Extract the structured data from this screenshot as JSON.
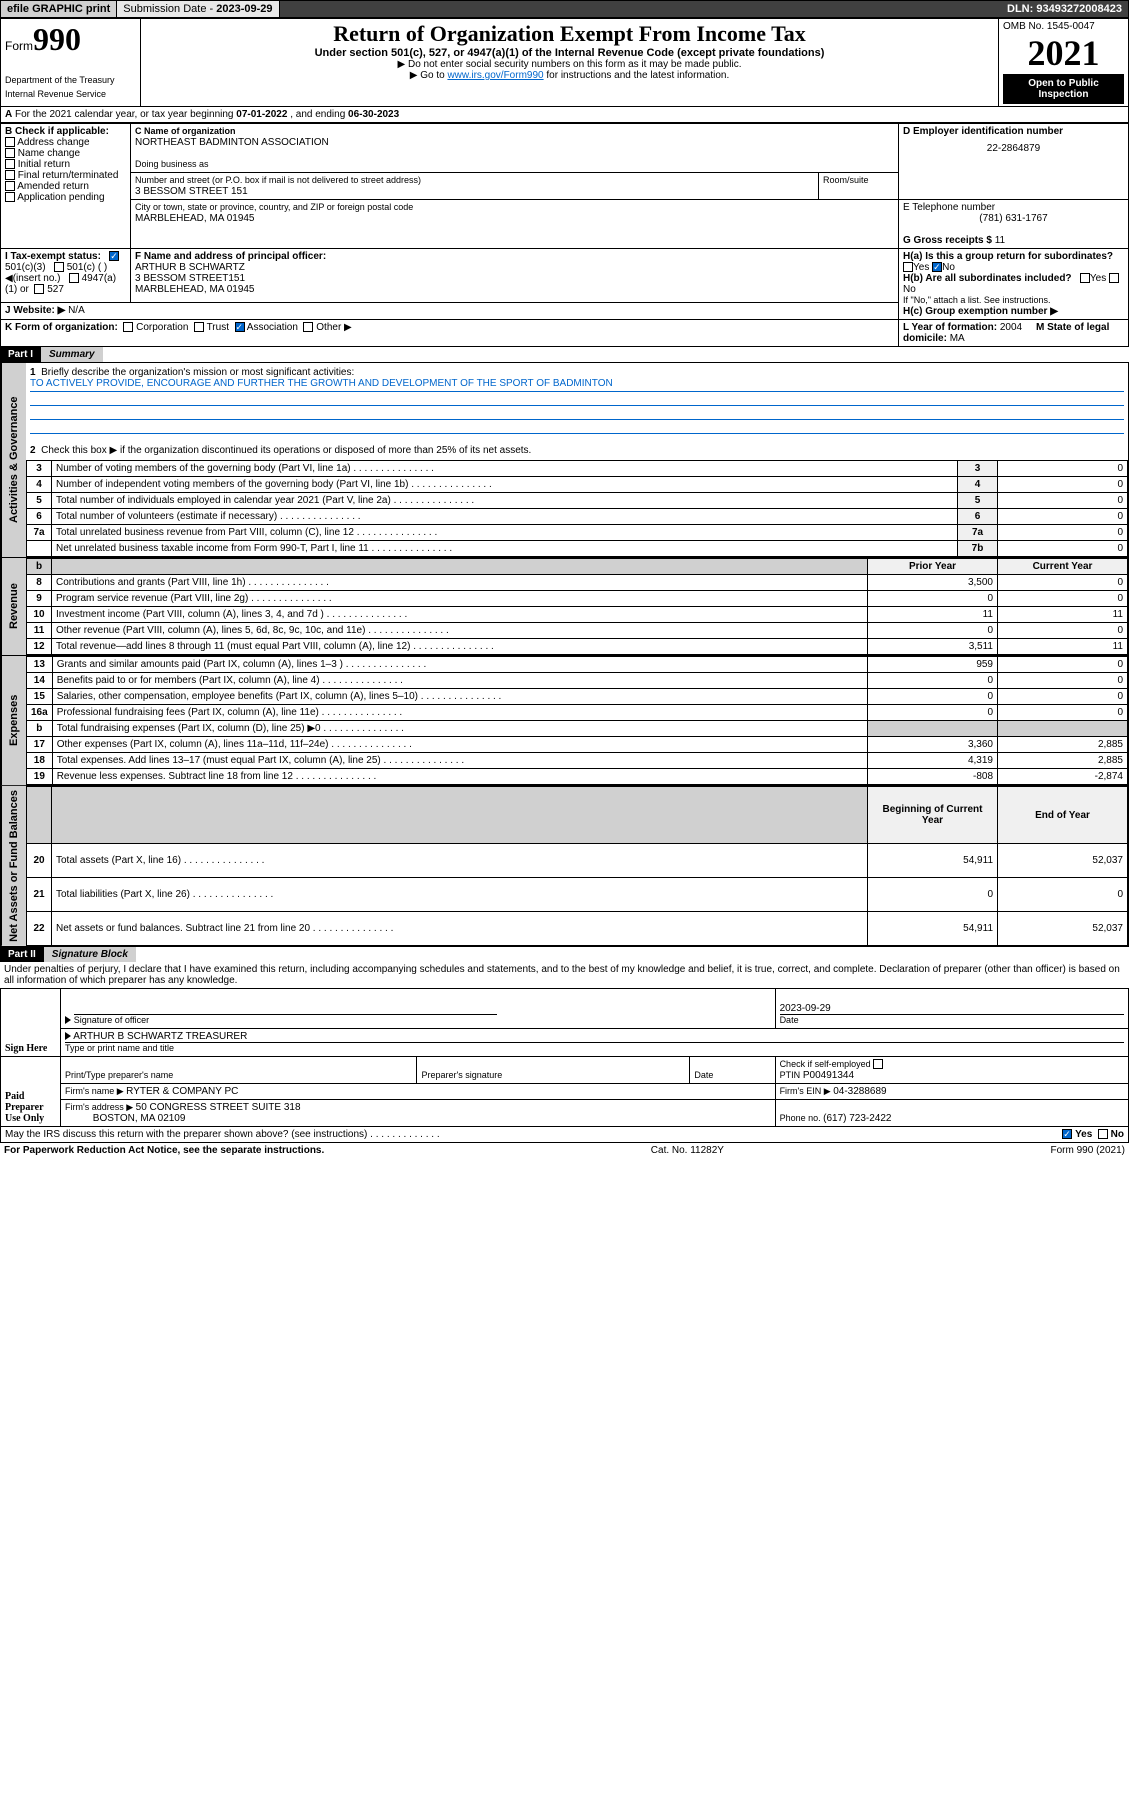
{
  "topbar": {
    "efile": "efile GRAPHIC print",
    "sub_label": "Submission Date - ",
    "sub_date": "2023-09-29",
    "dln_label": "DLN: ",
    "dln": "93493272008423"
  },
  "header": {
    "form_label": "Form",
    "form_no": "990",
    "dept": "Department of the Treasury\nInternal Revenue Service",
    "title": "Return of Organization Exempt From Income Tax",
    "subtitle": "Under section 501(c), 527, or 4947(a)(1) of the Internal Revenue Code (except private foundations)",
    "instr1": "▶ Do not enter social security numbers on this form as it may be made public.",
    "instr2": "▶ Go to ",
    "instr2_link": "www.irs.gov/Form990",
    "instr2_rest": " for instructions and the latest information.",
    "omb": "OMB No. 1545-0047",
    "year": "2021",
    "open": "Open to Public Inspection"
  },
  "line_a": {
    "text": "For the 2021 calendar year, or tax year beginning ",
    "begin": "07-01-2022",
    "mid": " , and ending ",
    "end": "06-30-2023"
  },
  "box_b": {
    "label": "B Check if applicable:",
    "opts": [
      "Address change",
      "Name change",
      "Initial return",
      "Final return/terminated",
      "Amended return",
      "Application pending"
    ]
  },
  "box_c": {
    "name_label": "C Name of organization",
    "name": "NORTHEAST BADMINTON ASSOCIATION",
    "dba_label": "Doing business as",
    "dba": "",
    "street_label": "Number and street (or P.O. box if mail is not delivered to street address)",
    "room_label": "Room/suite",
    "street": "3 BESSOM STREET 151",
    "city_label": "City or town, state or province, country, and ZIP or foreign postal code",
    "city": "MARBLEHEAD, MA  01945"
  },
  "box_d": {
    "label": "D Employer identification number",
    "val": "22-2864879"
  },
  "box_e": {
    "label": "E Telephone number",
    "val": "(781) 631-1767"
  },
  "box_g": {
    "label": "G Gross receipts $ ",
    "val": "11"
  },
  "box_f": {
    "label": "F  Name and address of principal officer:",
    "name": "ARTHUR B SCHWARTZ",
    "addr1": "3 BESSOM STREET151",
    "addr2": "MARBLEHEAD, MA  01945"
  },
  "box_h": {
    "a_label": "H(a)  Is this a group return for subordinates?",
    "b_label": "H(b)  Are all subordinates included?",
    "b_note": "If \"No,\" attach a list. See instructions.",
    "c_label": "H(c)  Group exemption number ▶"
  },
  "box_i": {
    "label": "I  Tax-exempt status:",
    "opt1": "501(c)(3)",
    "opt2": "501(c) (   ) ◀(insert no.)",
    "opt3": "4947(a)(1) or",
    "opt4": "527"
  },
  "box_j": {
    "label": "J  Website: ▶ ",
    "val": "N/A"
  },
  "box_k": {
    "label": "K Form of organization:",
    "opts": [
      "Corporation",
      "Trust",
      "Association",
      "Other ▶"
    ]
  },
  "box_l": {
    "label": "L Year of formation: ",
    "val": "2004"
  },
  "box_m": {
    "label": "M State of legal domicile: ",
    "val": "MA"
  },
  "parts": {
    "p1": {
      "hdr": "Part I",
      "title": "Summary"
    },
    "p2": {
      "hdr": "Part II",
      "title": "Signature Block"
    }
  },
  "summary": {
    "side1": "Activities & Governance",
    "side2": "Revenue",
    "side3": "Expenses",
    "side4": "Net Assets or Fund Balances",
    "line1_label": "Briefly describe the organization's mission or most significant activities:",
    "line1_text": "TO ACTIVELY PROVIDE, ENCOURAGE AND FURTHER THE GROWTH AND DEVELOPMENT OF THE SPORT OF BADMINTON",
    "line2": "Check this box ▶       if the organization discontinued its operations or disposed of more than 25% of its net assets.",
    "rows_gov": [
      {
        "n": "3",
        "d": "Number of voting members of the governing body (Part VI, line 1a)",
        "ln": "3",
        "v": "0"
      },
      {
        "n": "4",
        "d": "Number of independent voting members of the governing body (Part VI, line 1b)",
        "ln": "4",
        "v": "0"
      },
      {
        "n": "5",
        "d": "Total number of individuals employed in calendar year 2021 (Part V, line 2a)",
        "ln": "5",
        "v": "0"
      },
      {
        "n": "6",
        "d": "Total number of volunteers (estimate if necessary)",
        "ln": "6",
        "v": "0"
      },
      {
        "n": "7a",
        "d": "Total unrelated business revenue from Part VIII, column (C), line 12",
        "ln": "7a",
        "v": "0"
      },
      {
        "n": "",
        "d": "Net unrelated business taxable income from Form 990-T, Part I, line 11",
        "ln": "7b",
        "v": "0"
      }
    ],
    "col_prior": "Prior Year",
    "col_curr": "Current Year",
    "rows_rev": [
      {
        "n": "8",
        "d": "Contributions and grants (Part VIII, line 1h)",
        "p": "3,500",
        "c": "0"
      },
      {
        "n": "9",
        "d": "Program service revenue (Part VIII, line 2g)",
        "p": "0",
        "c": "0"
      },
      {
        "n": "10",
        "d": "Investment income (Part VIII, column (A), lines 3, 4, and 7d )",
        "p": "11",
        "c": "11"
      },
      {
        "n": "11",
        "d": "Other revenue (Part VIII, column (A), lines 5, 6d, 8c, 9c, 10c, and 11e)",
        "p": "0",
        "c": "0"
      },
      {
        "n": "12",
        "d": "Total revenue—add lines 8 through 11 (must equal Part VIII, column (A), line 12)",
        "p": "3,511",
        "c": "11"
      }
    ],
    "rows_exp": [
      {
        "n": "13",
        "d": "Grants and similar amounts paid (Part IX, column (A), lines 1–3 )",
        "p": "959",
        "c": "0"
      },
      {
        "n": "14",
        "d": "Benefits paid to or for members (Part IX, column (A), line 4)",
        "p": "0",
        "c": "0"
      },
      {
        "n": "15",
        "d": "Salaries, other compensation, employee benefits (Part IX, column (A), lines 5–10)",
        "p": "0",
        "c": "0"
      },
      {
        "n": "16a",
        "d": "Professional fundraising fees (Part IX, column (A), line 11e)",
        "p": "0",
        "c": "0"
      },
      {
        "n": "b",
        "d": "Total fundraising expenses (Part IX, column (D), line 25) ▶0",
        "p": "",
        "c": ""
      },
      {
        "n": "17",
        "d": "Other expenses (Part IX, column (A), lines 11a–11d, 11f–24e)",
        "p": "3,360",
        "c": "2,885"
      },
      {
        "n": "18",
        "d": "Total expenses. Add lines 13–17 (must equal Part IX, column (A), line 25)",
        "p": "4,319",
        "c": "2,885"
      },
      {
        "n": "19",
        "d": "Revenue less expenses. Subtract line 18 from line 12",
        "p": "-808",
        "c": "-2,874"
      }
    ],
    "col_beg": "Beginning of Current Year",
    "col_end": "End of Year",
    "rows_net": [
      {
        "n": "20",
        "d": "Total assets (Part X, line 16)",
        "p": "54,911",
        "c": "52,037"
      },
      {
        "n": "21",
        "d": "Total liabilities (Part X, line 26)",
        "p": "0",
        "c": "0"
      },
      {
        "n": "22",
        "d": "Net assets or fund balances. Subtract line 21 from line 20",
        "p": "54,911",
        "c": "52,037"
      }
    ]
  },
  "sig": {
    "penalty": "Under penalties of perjury, I declare that I have examined this return, including accompanying schedules and statements, and to the best of my knowledge and belief, it is true, correct, and complete. Declaration of preparer (other than officer) is based on all information of which preparer has any knowledge.",
    "sign_here": "Sign Here",
    "sig_officer": "Signature of officer",
    "date_label": "Date",
    "date": "2023-09-29",
    "name": "ARTHUR B SCHWARTZ  TREASURER",
    "name_label": "Type or print name and title",
    "paid": "Paid Preparer Use Only",
    "prep_name_label": "Print/Type preparer's name",
    "prep_sig_label": "Preparer's signature",
    "check_label": "Check       if self-employed",
    "ptin_label": "PTIN",
    "ptin": "P00491344",
    "firm_name_label": "Firm's name    ▶ ",
    "firm_name": "RYTER & COMPANY PC",
    "firm_ein_label": "Firm's EIN ▶ ",
    "firm_ein": "04-3288689",
    "firm_addr_label": "Firm's address ▶ ",
    "firm_addr1": "50 CONGRESS STREET SUITE 318",
    "firm_addr2": "BOSTON, MA  02109",
    "phone_label": "Phone no. ",
    "phone": "(617) 723-2422",
    "may_irs": "May the IRS discuss this return with the preparer shown above? (see instructions)",
    "yes": "Yes",
    "no": "No"
  },
  "footer": {
    "left": "For Paperwork Reduction Act Notice, see the separate instructions.",
    "mid": "Cat. No. 11282Y",
    "right": "Form 990 (2021)"
  },
  "colors": {
    "link": "#0066cc",
    "shade": "#d0d0d0"
  }
}
